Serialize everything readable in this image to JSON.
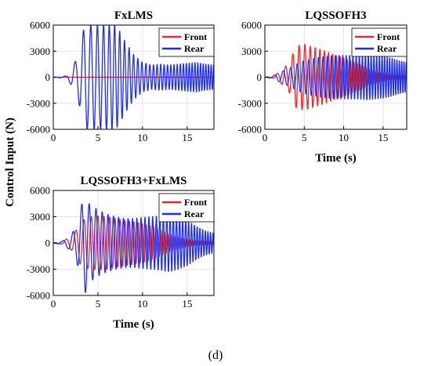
{
  "caption": "(d)",
  "ylabel_shared": "Control Input (N)",
  "colors": {
    "front": "#e8262b",
    "rear": "#1f2fe8",
    "grid": "#dddddd",
    "axis": "#000000"
  },
  "chart_data": [
    {
      "type": "line",
      "title": "FxLMS",
      "xlabel": "",
      "ylabel": "",
      "xlim": [
        0,
        18
      ],
      "ylim": [
        -6000,
        6000
      ],
      "xticks": [
        "0",
        "5",
        "10",
        "15"
      ],
      "yticks": [
        "-6000",
        "-3000",
        "0",
        "3000",
        "6000"
      ],
      "grid": true,
      "legend": "top-right",
      "series": [
        {
          "name": "Front",
          "values": [
            [
              0,
              0
            ],
            [
              18,
              0
            ]
          ]
        },
        {
          "name": "Rear",
          "envelope": [
            [
              0,
              0
            ],
            [
              1.5,
              150
            ],
            [
              2,
              900
            ],
            [
              2.5,
              1900
            ],
            [
              3,
              3500
            ],
            [
              3.5,
              6000
            ],
            [
              4,
              6000
            ],
            [
              5,
              6000
            ],
            [
              6,
              6000
            ],
            [
              7,
              6000
            ],
            [
              7.5,
              5200
            ],
            [
              8,
              4200
            ],
            [
              9,
              2600
            ],
            [
              10,
              1700
            ],
            [
              11,
              1400
            ],
            [
              12,
              1500
            ],
            [
              13,
              1400
            ],
            [
              14,
              1500
            ],
            [
              15,
              1600
            ],
            [
              16,
              1700
            ],
            [
              17,
              1500
            ],
            [
              18,
              1400
            ]
          ]
        }
      ]
    },
    {
      "type": "line",
      "title": "LQSSOFH3",
      "xlabel": "Time (s)",
      "ylabel": "",
      "xlim": [
        0,
        18
      ],
      "ylim": [
        -6000,
        6000
      ],
      "xticks": [
        "0",
        "5",
        "10",
        "15"
      ],
      "yticks": [
        "-6000",
        "-3000",
        "0",
        "3000",
        "6000"
      ],
      "grid": true,
      "legend": "top-right",
      "series": [
        {
          "name": "Front",
          "envelope": [
            [
              0,
              0
            ],
            [
              1,
              100
            ],
            [
              2,
              700
            ],
            [
              3,
              1600
            ],
            [
              3.5,
              2600
            ],
            [
              4,
              3600
            ],
            [
              5,
              3800
            ],
            [
              6,
              3500
            ],
            [
              7,
              3200
            ],
            [
              8,
              2900
            ],
            [
              9,
              2500
            ],
            [
              10,
              2200
            ],
            [
              11,
              1800
            ],
            [
              12,
              1500
            ],
            [
              13,
              1000
            ],
            [
              14,
              700
            ],
            [
              15,
              500
            ],
            [
              16,
              300
            ],
            [
              18,
              200
            ]
          ]
        },
        {
          "name": "Rear",
          "envelope": [
            [
              0,
              0
            ],
            [
              1,
              150
            ],
            [
              2,
              600
            ],
            [
              3,
              1000
            ],
            [
              3.5,
              1200
            ],
            [
              4,
              1500
            ],
            [
              5,
              1900
            ],
            [
              6,
              2100
            ],
            [
              7,
              2300
            ],
            [
              8,
              2400
            ],
            [
              9,
              2500
            ],
            [
              10,
              2500
            ],
            [
              11,
              2500
            ],
            [
              12,
              2500
            ],
            [
              13,
              2600
            ],
            [
              14,
              2500
            ],
            [
              15,
              2400
            ],
            [
              16,
              2200
            ],
            [
              17,
              1900
            ],
            [
              18,
              1700
            ]
          ]
        }
      ]
    },
    {
      "type": "line",
      "title": "LQSSOFH3+FxLMS",
      "xlabel": "Time (s)",
      "ylabel": "",
      "xlim": [
        0,
        18
      ],
      "ylim": [
        -6000,
        6000
      ],
      "xticks": [
        "0",
        "5",
        "10",
        "15"
      ],
      "yticks": [
        "-6000",
        "-3000",
        "0",
        "3000",
        "6000"
      ],
      "grid": true,
      "legend": "top-right",
      "series": [
        {
          "name": "Front",
          "envelope": [
            [
              0,
              0
            ],
            [
              1,
              150
            ],
            [
              2,
              800
            ],
            [
              2.5,
              1400
            ],
            [
              3,
              2400
            ],
            [
              4,
              3000
            ],
            [
              5,
              3100
            ],
            [
              6,
              3000
            ],
            [
              7,
              2800
            ],
            [
              8,
              2600
            ],
            [
              9,
              2400
            ],
            [
              10,
              2200
            ],
            [
              11,
              1900
            ],
            [
              12,
              1500
            ],
            [
              13,
              1000
            ],
            [
              14,
              700
            ],
            [
              15,
              450
            ],
            [
              16,
              300
            ],
            [
              18,
              200
            ]
          ]
        },
        {
          "name": "Rear",
          "envelope": [
            [
              0,
              0
            ],
            [
              1,
              200
            ],
            [
              2,
              900
            ],
            [
              2.5,
              1800
            ],
            [
              3,
              3500
            ],
            [
              3.5,
              6000
            ],
            [
              4,
              4500
            ],
            [
              5,
              3800
            ],
            [
              6,
              3300
            ],
            [
              7,
              3000
            ],
            [
              8,
              2800
            ],
            [
              9,
              2800
            ],
            [
              10,
              2900
            ],
            [
              11,
              3000
            ],
            [
              12,
              3100
            ],
            [
              13,
              3300
            ],
            [
              14,
              3000
            ],
            [
              15,
              2600
            ],
            [
              16,
              1900
            ],
            [
              17,
              1400
            ],
            [
              18,
              1100
            ]
          ]
        }
      ]
    }
  ]
}
